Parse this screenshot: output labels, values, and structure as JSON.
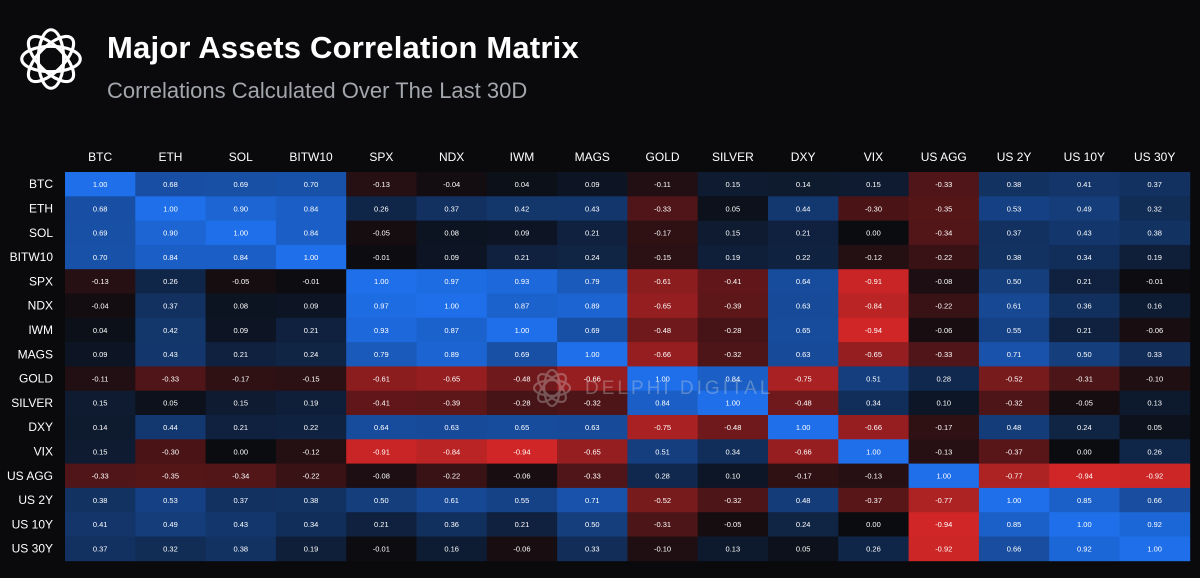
{
  "header": {
    "logo_icon": "delphi-knot-logo-icon",
    "title": "Major Assets Correlation Matrix",
    "subtitle": "Correlations Calculated Over The Last 30D"
  },
  "watermark": {
    "icon": "delphi-knot-logo-icon",
    "text": "DELPHI DIGITAL"
  },
  "colors": {
    "background": "#0a0a0c",
    "positive": "#1e6fe8",
    "negative": "#e02828",
    "neutral": "#0b0c10"
  },
  "chart_data": {
    "type": "heatmap",
    "title": "Major Assets Correlation Matrix",
    "subtitle": "Correlations Calculated Over The Last 30D",
    "x_categories": [
      "BTC",
      "ETH",
      "SOL",
      "BITW10",
      "SPX",
      "NDX",
      "IWM",
      "MAGS",
      "GOLD",
      "SILVER",
      "DXY",
      "VIX",
      "US AGG",
      "US 2Y",
      "US 10Y",
      "US 30Y"
    ],
    "y_categories": [
      "BTC",
      "ETH",
      "SOL",
      "BITW10",
      "SPX",
      "NDX",
      "IWM",
      "MAGS",
      "GOLD",
      "SILVER",
      "DXY",
      "VIX",
      "US AGG",
      "US 2Y",
      "US 10Y",
      "US 30Y"
    ],
    "value_range": [
      -1,
      1
    ],
    "values": [
      [
        "1.00",
        "0.68",
        "0.69",
        "0.70",
        "-0.13",
        "-0.04",
        "0.04",
        "0.09",
        "-0.11",
        "0.15",
        "0.14",
        "0.15",
        "-0.33",
        "0.38",
        "0.41",
        "0.37"
      ],
      [
        "0.68",
        "1.00",
        "0.90",
        "0.84",
        "0.26",
        "0.37",
        "0.42",
        "0.43",
        "-0.33",
        "0.05",
        "0.44",
        "-0.30",
        "-0.35",
        "0.53",
        "0.49",
        "0.32"
      ],
      [
        "0.69",
        "0.90",
        "1.00",
        "0.84",
        "-0.05",
        "0.08",
        "0.09",
        "0.21",
        "-0.17",
        "0.15",
        "0.21",
        "0.00",
        "-0.34",
        "0.37",
        "0.43",
        "0.38"
      ],
      [
        "0.70",
        "0.84",
        "0.84",
        "1.00",
        "-0.01",
        "0.09",
        "0.21",
        "0.24",
        "-0.15",
        "0.19",
        "0.22",
        "-0.12",
        "-0.22",
        "0.38",
        "0.34",
        "0.19"
      ],
      [
        "-0.13",
        "0.26",
        "-0.05",
        "-0.01",
        "1.00",
        "0.97",
        "0.93",
        "0.79",
        "-0.61",
        "-0.41",
        "0.64",
        "-0.91",
        "-0.08",
        "0.50",
        "0.21",
        "-0.01"
      ],
      [
        "-0.04",
        "0.37",
        "0.08",
        "0.09",
        "0.97",
        "1.00",
        "0.87",
        "0.89",
        "-0.65",
        "-0.39",
        "0.63",
        "-0.84",
        "-0.22",
        "0.61",
        "0.36",
        "0.16"
      ],
      [
        "0.04",
        "0.42",
        "0.09",
        "0.21",
        "0.93",
        "0.87",
        "1.00",
        "0.69",
        "-0.48",
        "-0.28",
        "0.65",
        "-0.94",
        "-0.06",
        "0.55",
        "0.21",
        "-0.06"
      ],
      [
        "0.09",
        "0.43",
        "0.21",
        "0.24",
        "0.79",
        "0.89",
        "0.69",
        "1.00",
        "-0.66",
        "-0.32",
        "0.63",
        "-0.65",
        "-0.33",
        "0.71",
        "0.50",
        "0.33"
      ],
      [
        "-0.11",
        "-0.33",
        "-0.17",
        "-0.15",
        "-0.61",
        "-0.65",
        "-0.48",
        "-0.66",
        "1.00",
        "0.84",
        "-0.75",
        "0.51",
        "0.28",
        "-0.52",
        "-0.31",
        "-0.10"
      ],
      [
        "0.15",
        "0.05",
        "0.15",
        "0.19",
        "-0.41",
        "-0.39",
        "-0.28",
        "-0.32",
        "0.84",
        "1.00",
        "-0.48",
        "0.34",
        "0.10",
        "-0.32",
        "-0.05",
        "0.13"
      ],
      [
        "0.14",
        "0.44",
        "0.21",
        "0.22",
        "0.64",
        "0.63",
        "0.65",
        "0.63",
        "-0.75",
        "-0.48",
        "1.00",
        "-0.66",
        "-0.17",
        "0.48",
        "0.24",
        "0.05"
      ],
      [
        "0.15",
        "-0.30",
        "0.00",
        "-0.12",
        "-0.91",
        "-0.84",
        "-0.94",
        "-0.65",
        "0.51",
        "0.34",
        "-0.66",
        "1.00",
        "-0.13",
        "-0.37",
        "0.00",
        "0.26"
      ],
      [
        "-0.33",
        "-0.35",
        "-0.34",
        "-0.22",
        "-0.08",
        "-0.22",
        "-0.06",
        "-0.33",
        "0.28",
        "0.10",
        "-0.17",
        "-0.13",
        "1.00",
        "-0.77",
        "-0.94",
        "-0.92"
      ],
      [
        "0.38",
        "0.53",
        "0.37",
        "0.38",
        "0.50",
        "0.61",
        "0.55",
        "0.71",
        "-0.52",
        "-0.32",
        "0.48",
        "-0.37",
        "-0.77",
        "1.00",
        "0.85",
        "0.66"
      ],
      [
        "0.41",
        "0.49",
        "0.43",
        "0.34",
        "0.21",
        "0.36",
        "0.21",
        "0.50",
        "-0.31",
        "-0.05",
        "0.24",
        "0.00",
        "-0.94",
        "0.85",
        "1.00",
        "0.92"
      ],
      [
        "0.37",
        "0.32",
        "0.38",
        "0.19",
        "-0.01",
        "0.16",
        "-0.06",
        "0.33",
        "-0.10",
        "0.13",
        "0.05",
        "0.26",
        "-0.92",
        "0.66",
        "0.92",
        "1.00"
      ]
    ]
  }
}
